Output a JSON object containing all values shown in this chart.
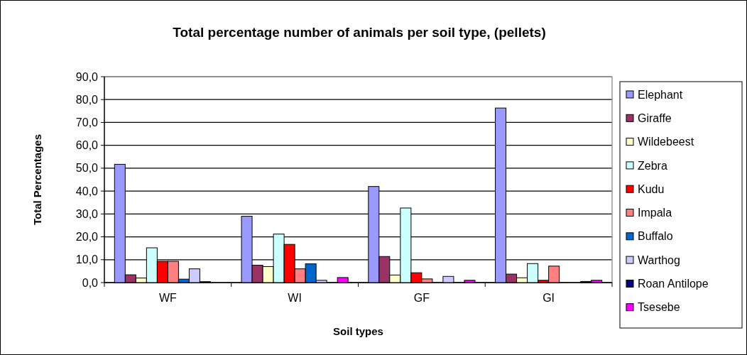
{
  "chart_data": {
    "type": "bar",
    "title": "Total percentage number of animals per soil type, (pellets)",
    "xlabel": "Soil types",
    "ylabel": "Total Percentages",
    "categories": [
      "WF",
      "WI",
      "GF",
      "GI"
    ],
    "series": [
      {
        "name": "Elephant",
        "color": "#9999ff",
        "values": [
          51.7,
          29.0,
          42.0,
          76.3
        ]
      },
      {
        "name": "Giraffe",
        "color": "#993366",
        "values": [
          3.4,
          7.6,
          11.4,
          3.7
        ]
      },
      {
        "name": "Wildebeest",
        "color": "#ffffcc",
        "values": [
          2.0,
          7.0,
          3.3,
          2.1
        ]
      },
      {
        "name": "Zebra",
        "color": "#ccffff",
        "values": [
          15.2,
          21.2,
          32.6,
          8.3
        ]
      },
      {
        "name": "Kudu",
        "color": "#ff0000",
        "values": [
          9.3,
          16.7,
          4.3,
          1.0
        ]
      },
      {
        "name": "Impala",
        "color": "#ff8080",
        "values": [
          9.3,
          6.0,
          1.6,
          7.2
        ]
      },
      {
        "name": "Buffalo",
        "color": "#0066cc",
        "values": [
          1.5,
          8.2,
          0,
          0
        ]
      },
      {
        "name": "Warthog",
        "color": "#ccccff",
        "values": [
          6.0,
          1.0,
          2.7,
          0
        ]
      },
      {
        "name": "Roan Antilope",
        "color": "#000080",
        "values": [
          0.4,
          0,
          0,
          0.5
        ]
      },
      {
        "name": "Tsesebe",
        "color": "#ff00ff",
        "values": [
          0,
          2.2,
          1.0,
          1.0
        ]
      }
    ],
    "ylim": [
      0,
      90
    ],
    "yticks": [
      {
        "value": 0,
        "label": "0,0"
      },
      {
        "value": 10,
        "label": "10,0"
      },
      {
        "value": 20,
        "label": "20,0"
      },
      {
        "value": 30,
        "label": "30,0"
      },
      {
        "value": 40,
        "label": "40,0"
      },
      {
        "value": 50,
        "label": "50,0"
      },
      {
        "value": 60,
        "label": "60,0"
      },
      {
        "value": 70,
        "label": "70,0"
      },
      {
        "value": 80,
        "label": "80,0"
      },
      {
        "value": 90,
        "label": "90,0"
      }
    ],
    "grid": "y",
    "legend": "right"
  }
}
